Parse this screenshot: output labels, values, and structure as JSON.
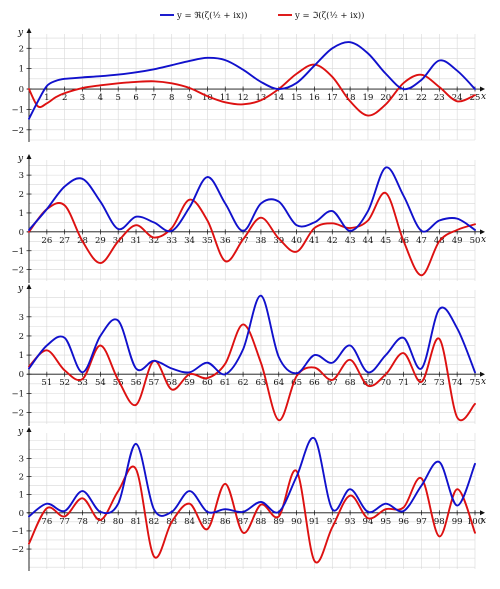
{
  "chart_data": {
    "type": "line",
    "colors": {
      "real": "#1111cc",
      "imag": "#dd1111"
    },
    "legend": {
      "position": "top-center",
      "entries": [
        {
          "series": "real",
          "label": "y = ℜ(ζ(½ + ix))"
        },
        {
          "series": "imag",
          "label": "y = ℑ(ζ(½ + ix))"
        }
      ]
    },
    "panels": [
      {
        "xlim": [
          0,
          25
        ],
        "ylim": [
          -2.5,
          2.7
        ],
        "xticks": [
          1,
          2,
          3,
          4,
          5,
          6,
          7,
          8,
          9,
          10,
          11,
          12,
          13,
          14,
          15,
          16,
          17,
          18,
          19,
          20,
          21,
          22,
          23,
          24,
          25
        ],
        "yticks": [
          -2,
          -1,
          0,
          1,
          2
        ],
        "xlabel": "x",
        "ylabel": "y",
        "grid": true,
        "x": [
          0,
          0.5,
          1,
          1.5,
          2,
          3,
          4,
          5,
          6,
          7,
          8,
          9,
          10,
          11,
          12,
          13,
          14,
          15,
          16,
          17,
          18,
          19,
          20,
          21,
          22,
          23,
          24,
          25
        ],
        "real": [
          -1.46,
          -0.6,
          0.15,
          0.4,
          0.5,
          0.57,
          0.63,
          0.71,
          0.82,
          0.97,
          1.17,
          1.38,
          1.53,
          1.42,
          0.95,
          0.35,
          0.0,
          0.3,
          1.15,
          2.0,
          2.3,
          1.75,
          0.75,
          0.0,
          0.45,
          1.4,
          0.9,
          0.0
        ],
        "imag": [
          0.0,
          -0.85,
          -0.7,
          -0.4,
          -0.2,
          0.05,
          0.18,
          0.28,
          0.35,
          0.38,
          0.28,
          0.05,
          -0.35,
          -0.65,
          -0.75,
          -0.55,
          0.0,
          0.75,
          1.2,
          0.6,
          -0.6,
          -1.3,
          -0.75,
          0.3,
          0.7,
          0.1,
          -0.6,
          -0.3
        ]
      },
      {
        "xlim": [
          25,
          50
        ],
        "ylim": [
          -2.6,
          3.8
        ],
        "xticks": [
          26,
          27,
          28,
          29,
          30,
          31,
          32,
          33,
          34,
          35,
          36,
          37,
          38,
          39,
          40,
          41,
          42,
          43,
          44,
          45,
          46,
          47,
          48,
          49,
          50
        ],
        "yticks": [
          -2,
          -1,
          0,
          1,
          2,
          3
        ],
        "xlabel": "x",
        "ylabel": "y",
        "grid": true,
        "x": [
          25,
          26,
          27,
          28,
          29,
          30,
          31,
          32,
          33,
          34,
          35,
          36,
          37,
          38,
          39,
          40,
          41,
          42,
          43,
          44,
          45,
          46,
          47,
          48,
          49,
          50
        ],
        "real": [
          0.1,
          1.2,
          2.4,
          2.8,
          1.6,
          0.15,
          0.8,
          0.5,
          0.05,
          1.3,
          2.9,
          1.5,
          0.05,
          1.5,
          1.6,
          0.35,
          0.5,
          1.1,
          0.05,
          1.1,
          3.4,
          1.9,
          0.05,
          0.6,
          0.7,
          0.1
        ],
        "imag": [
          0.0,
          1.2,
          1.4,
          -0.5,
          -1.65,
          -0.5,
          0.35,
          -0.3,
          0.2,
          1.7,
          0.6,
          -1.55,
          -0.4,
          0.75,
          -0.35,
          -1.05,
          0.2,
          0.45,
          0.2,
          0.6,
          2.05,
          -0.5,
          -2.3,
          -0.5,
          0.1,
          0.4
        ]
      },
      {
        "xlim": [
          50,
          75
        ],
        "ylim": [
          -2.6,
          4.4
        ],
        "xticks": [
          51,
          52,
          53,
          54,
          55,
          56,
          57,
          58,
          59,
          60,
          61,
          62,
          63,
          64,
          65,
          66,
          67,
          68,
          69,
          70,
          71,
          72,
          73,
          74,
          75
        ],
        "yticks": [
          -2,
          -1,
          0,
          1,
          2,
          3
        ],
        "xlabel": "x",
        "ylabel": "y",
        "grid": true,
        "x": [
          50,
          51,
          52,
          53,
          54,
          55,
          56,
          57,
          58,
          59,
          60,
          61,
          62,
          63,
          64,
          65,
          66,
          67,
          68,
          69,
          70,
          71,
          72,
          73,
          74,
          75
        ],
        "real": [
          0.3,
          1.5,
          1.9,
          0.1,
          2.0,
          2.8,
          0.3,
          0.7,
          0.3,
          0.1,
          0.6,
          0.0,
          1.3,
          4.1,
          0.9,
          0.05,
          1.0,
          0.6,
          1.5,
          0.1,
          1.0,
          1.9,
          0.3,
          3.4,
          2.4,
          0.1
        ],
        "imag": [
          0.4,
          1.25,
          0.2,
          -0.25,
          1.5,
          -0.3,
          -1.6,
          0.7,
          -0.8,
          0.0,
          -0.2,
          0.55,
          2.6,
          0.6,
          -2.4,
          -0.1,
          0.35,
          -0.3,
          0.75,
          -0.6,
          0.0,
          1.1,
          -0.4,
          1.85,
          -2.25,
          -1.55
        ]
      },
      {
        "xlim": [
          75,
          100
        ],
        "ylim": [
          -3.1,
          4.4
        ],
        "xticks": [
          76,
          77,
          78,
          79,
          80,
          81,
          82,
          83,
          84,
          85,
          86,
          87,
          88,
          89,
          90,
          91,
          92,
          93,
          94,
          95,
          96,
          97,
          98,
          99,
          100
        ],
        "yticks": [
          -2,
          -1,
          0,
          1,
          2,
          3
        ],
        "xlabel": "x",
        "ylabel": "y",
        "grid": true,
        "x": [
          75,
          76,
          77,
          78,
          79,
          80,
          81,
          82,
          83,
          84,
          85,
          86,
          87,
          88,
          89,
          90,
          91,
          92,
          93,
          94,
          95,
          96,
          97,
          98,
          99,
          100
        ],
        "real": [
          -0.2,
          0.5,
          0.1,
          1.2,
          0.05,
          0.5,
          3.8,
          0.2,
          0.05,
          1.2,
          0.05,
          0.2,
          0.05,
          0.6,
          0.05,
          2.0,
          4.1,
          0.2,
          1.3,
          0.05,
          0.5,
          0.1,
          1.5,
          2.8,
          0.4,
          2.7
        ],
        "imag": [
          -1.7,
          0.25,
          -0.2,
          0.8,
          -0.4,
          1.2,
          2.4,
          -2.4,
          -0.5,
          0.5,
          -0.9,
          1.6,
          -1.1,
          0.45,
          -0.2,
          2.3,
          -2.65,
          -0.8,
          0.95,
          -0.3,
          0.2,
          0.3,
          1.9,
          -1.3,
          1.3,
          -1.1
        ]
      }
    ]
  }
}
